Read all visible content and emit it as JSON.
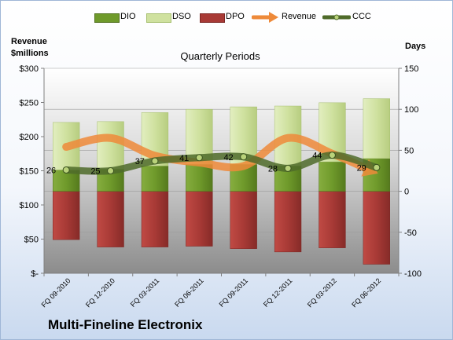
{
  "legend": {
    "dio": "DIO",
    "dso": "DSO",
    "dpo": "DPO",
    "revenue": "Revenue",
    "ccc": "CCC"
  },
  "left_axis_title_1": "Revenue",
  "left_axis_title_2": "$millions",
  "right_axis_title": "Days",
  "subtitle": "Quarterly Periods",
  "company": "Multi-Fineline Electronix",
  "colors": {
    "dio": "#6f9a2b",
    "dso": "#cfe19f",
    "dpo": "#a83a36",
    "revenue": "#ee8a3a",
    "ccc": "#4f6b2a"
  },
  "chart_data": {
    "type": "bar",
    "categories": [
      "FQ 09-2010",
      "FQ 12-2010",
      "FQ 03-2011",
      "FQ 06-2011",
      "FQ 09-2011",
      "FQ 12-2011",
      "FQ 03-2012",
      "FQ 06-2012"
    ],
    "left_axis": {
      "ticks": [
        "$-",
        "$50",
        "$100",
        "$150",
        "$200",
        "$250",
        "$300"
      ],
      "ylim": [
        0,
        300
      ]
    },
    "right_axis": {
      "ticks": [
        "-100",
        "-50",
        "0",
        "50",
        "100",
        "150"
      ],
      "ylim": [
        -100,
        150
      ]
    },
    "series": [
      {
        "name": "DIO",
        "axis": "right",
        "values": [
          26,
          27,
          31,
          33,
          33,
          31,
          36,
          40
        ]
      },
      {
        "name": "DSO",
        "axis": "right",
        "values": [
          58,
          58,
          65,
          67,
          70,
          73,
          72,
          73
        ]
      },
      {
        "name": "DPO",
        "axis": "right",
        "values": [
          -59,
          -68,
          -68,
          -67,
          -70,
          -74,
          -69,
          -89
        ]
      },
      {
        "name": "Revenue",
        "axis": "left",
        "values": [
          185,
          198,
          172,
          162,
          157,
          198,
          175,
          147
        ]
      },
      {
        "name": "CCC",
        "axis": "right",
        "values": [
          26,
          25,
          37,
          41,
          42,
          28,
          44,
          29
        ]
      }
    ],
    "data_labels": [
      "26",
      "25",
      "37",
      "41",
      "42",
      "28",
      "44",
      "29"
    ]
  }
}
